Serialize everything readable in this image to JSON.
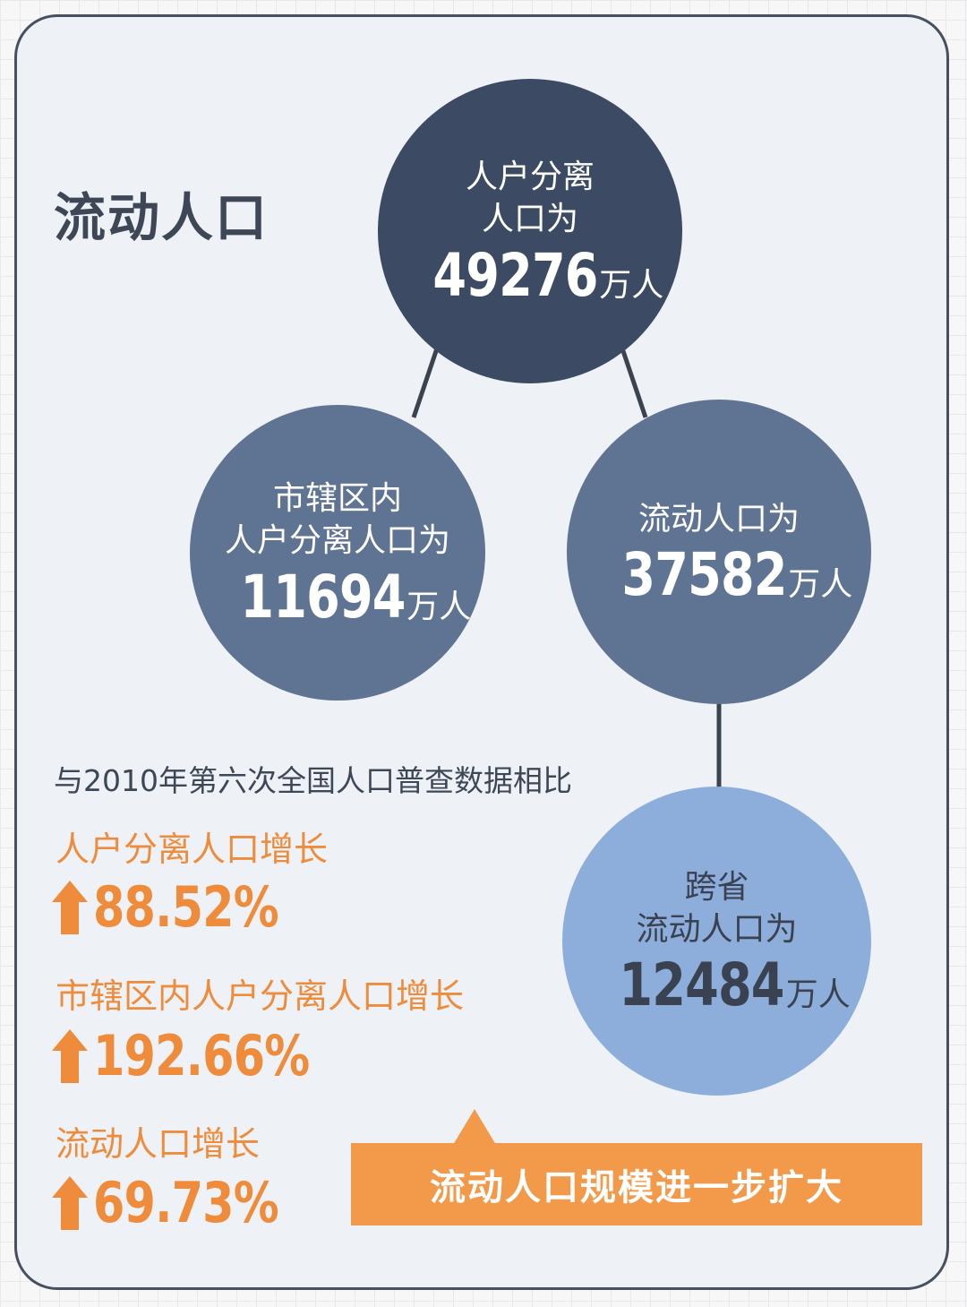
{
  "title": "流动人口",
  "nodes": {
    "total": {
      "line1": "人户分离",
      "line2": "人口为",
      "value": "49276",
      "unit": "万人"
    },
    "city": {
      "line1": "市辖区内",
      "line2": "人户分离人口为",
      "value": "11694",
      "unit": "万人"
    },
    "floating": {
      "line1": "流动人口为",
      "value": "37582",
      "unit": "万人"
    },
    "cross_province": {
      "line1": "跨省",
      "line2": "流动人口为",
      "value": "12484",
      "unit": "万人"
    }
  },
  "comparison": {
    "heading": "与2010年第六次全国人口普查数据相比",
    "items": [
      {
        "label": "人户分离人口增长",
        "value": "88.52%"
      },
      {
        "label": "市辖区内人户分离人口增长",
        "value": "192.66%"
      },
      {
        "label": "流动人口增长",
        "value": "69.73%"
      }
    ]
  },
  "banner": {
    "text": "流动人口规模进一步扩大"
  },
  "colors": {
    "border": "#47505e",
    "node_dark": "#3c4b63",
    "node_mid": "#5f7393",
    "node_light": "#8daedb",
    "accent_orange": "#ef8c3c",
    "banner_orange": "#f39a4a"
  }
}
